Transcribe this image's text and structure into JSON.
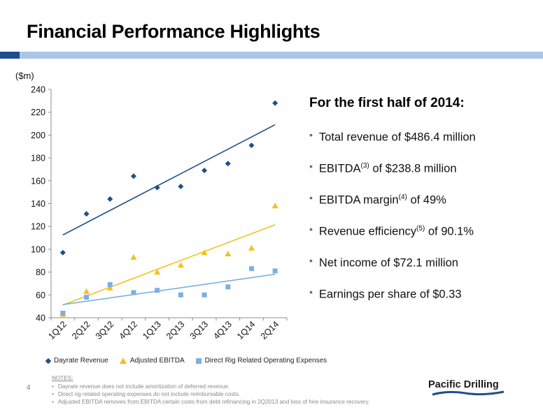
{
  "slide": {
    "title": "Financial Performance Highlights",
    "page_number": "4"
  },
  "chart_data": {
    "type": "scatter",
    "ylabel": "($m)",
    "xlabel": "",
    "categories": [
      "1Q12",
      "2Q12",
      "3Q12",
      "4Q12",
      "1Q13",
      "2Q13",
      "3Q13",
      "4Q13",
      "1Q14",
      "2Q14"
    ],
    "ylim": [
      40,
      240
    ],
    "yticks": [
      40,
      60,
      80,
      100,
      120,
      140,
      160,
      180,
      200,
      220,
      240
    ],
    "grid": false,
    "legend_position": "bottom",
    "series": [
      {
        "name": "Dayrate Revenue",
        "marker": "diamond",
        "color": "#1f4e8c",
        "values": [
          97,
          131,
          144,
          164,
          154,
          155,
          169,
          175,
          191,
          228
        ],
        "trendline": true
      },
      {
        "name": "Adjusted EBITDA",
        "marker": "triangle",
        "color": "#f2c11a",
        "values": [
          43,
          63,
          66,
          93,
          80,
          86,
          97,
          96,
          101,
          138
        ],
        "trendline": true
      },
      {
        "name": "Direct Rig Related Operating Expenses",
        "marker": "square",
        "color": "#7bafdf",
        "values": [
          44,
          58,
          69,
          62,
          64,
          60,
          60,
          67,
          83,
          81
        ],
        "trendline": true
      }
    ]
  },
  "highlights": {
    "heading": "For the first half of 2014:",
    "items": [
      {
        "before": "Total revenue of $486.4 million",
        "sup": "",
        "after": ""
      },
      {
        "before": "EBITDA",
        "sup": "(3)",
        "after": " of $238.8 million"
      },
      {
        "before": "EBITDA margin",
        "sup": "(4)",
        "after": " of 49%"
      },
      {
        "before": "Revenue efficiency",
        "sup": "(5)",
        "after": " of 90.1%"
      },
      {
        "before": "Net income of $72.1 million",
        "sup": "",
        "after": ""
      },
      {
        "before": "Earnings per share of $0.33",
        "sup": "",
        "after": ""
      }
    ]
  },
  "notes": {
    "title": "NOTES:",
    "items": [
      "Dayrate revenue does not include amortization of deferred revenue.",
      "Direct rig related operating expenses do not include reimbursable costs.",
      "Adjusted EBITDA removes from EBITDA certain costs from debt refinancing in 2Q2013 and loss of hire insurance recovery."
    ]
  },
  "logo": {
    "text": "Pacific Drilling",
    "colors": {
      "text": "#1a1a1a",
      "wave": "#1f4e8c"
    }
  }
}
